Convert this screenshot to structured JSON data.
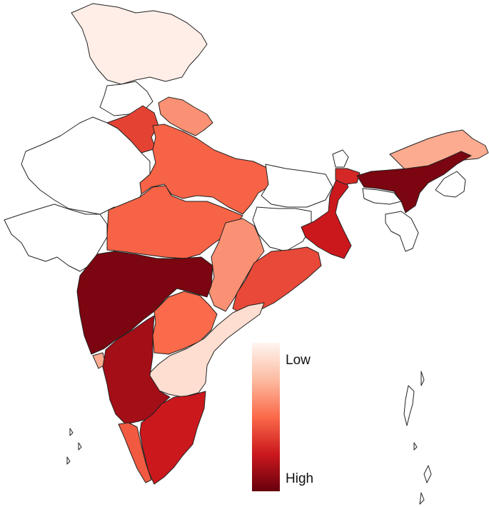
{
  "legend": {
    "low_label": "Low",
    "high_label": "High",
    "colors": [
      "#fff5f0",
      "#fcbba1",
      "#fb6a4a",
      "#cb181d",
      "#67000d"
    ]
  },
  "regions": [
    {
      "name": "jammu-kashmir",
      "level": 0.03
    },
    {
      "name": "himachal-pradesh",
      "level": 0
    },
    {
      "name": "punjab",
      "level": 0.62
    },
    {
      "name": "uttarakhand",
      "level": 0.38
    },
    {
      "name": "uttar-pradesh",
      "level": 0.52
    },
    {
      "name": "rajasthan",
      "level": 0
    },
    {
      "name": "gujarat",
      "level": 0
    },
    {
      "name": "madhya-pradesh",
      "level": 0.52
    },
    {
      "name": "bihar",
      "level": 0
    },
    {
      "name": "jharkhand",
      "level": 0
    },
    {
      "name": "west-bengal",
      "level": 0.75
    },
    {
      "name": "chhattisgarh",
      "level": 0.38
    },
    {
      "name": "odisha",
      "level": 0.6
    },
    {
      "name": "maharashtra",
      "level": 0.95
    },
    {
      "name": "telangana",
      "level": 0.5
    },
    {
      "name": "andhra-pradesh",
      "level": 0.1
    },
    {
      "name": "karnataka",
      "level": 0.85
    },
    {
      "name": "goa",
      "level": 0.3
    },
    {
      "name": "kerala",
      "level": 0.55
    },
    {
      "name": "tamil-nadu",
      "level": 0.75
    },
    {
      "name": "assam",
      "level": 0.95
    },
    {
      "name": "arunachal-pradesh",
      "level": 0.3
    },
    {
      "name": "meghalaya",
      "level": 0
    },
    {
      "name": "northeast-south",
      "level": 0
    },
    {
      "name": "sikkim",
      "level": 0
    },
    {
      "name": "sikkim-corridor",
      "level": 0.7
    },
    {
      "name": "tripura-mizoram",
      "level": 0
    }
  ]
}
